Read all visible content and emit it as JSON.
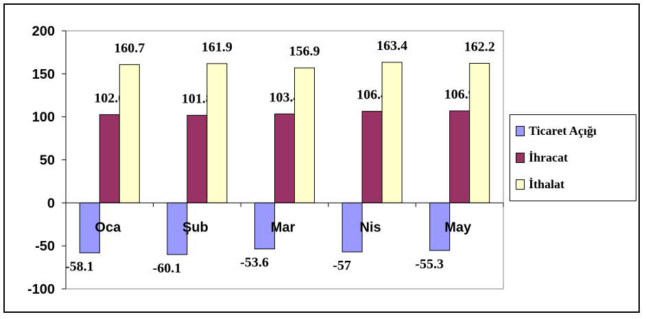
{
  "chart_data": {
    "type": "bar",
    "title": "",
    "xlabel": "",
    "ylabel": "",
    "ylim": [
      -100,
      200
    ],
    "yticks": [
      200,
      150,
      100,
      50,
      0,
      -50,
      -100
    ],
    "grid": false,
    "legend_position": "right",
    "categories": [
      "Oca",
      "Şub",
      "Mar",
      "Nis",
      "May"
    ],
    "series": [
      {
        "name": "Ticaret Açığı",
        "color": "#9999ff",
        "values": [
          -58.1,
          -60.1,
          -53.6,
          -57,
          -55.3
        ]
      },
      {
        "name": "İhracat",
        "color": "#993366",
        "values": [
          102.6,
          101.8,
          103.4,
          106.4,
          106.9
        ]
      },
      {
        "name": "İthalat",
        "color": "#ffffcc",
        "values": [
          160.7,
          161.9,
          156.9,
          163.4,
          162.2
        ]
      }
    ]
  }
}
